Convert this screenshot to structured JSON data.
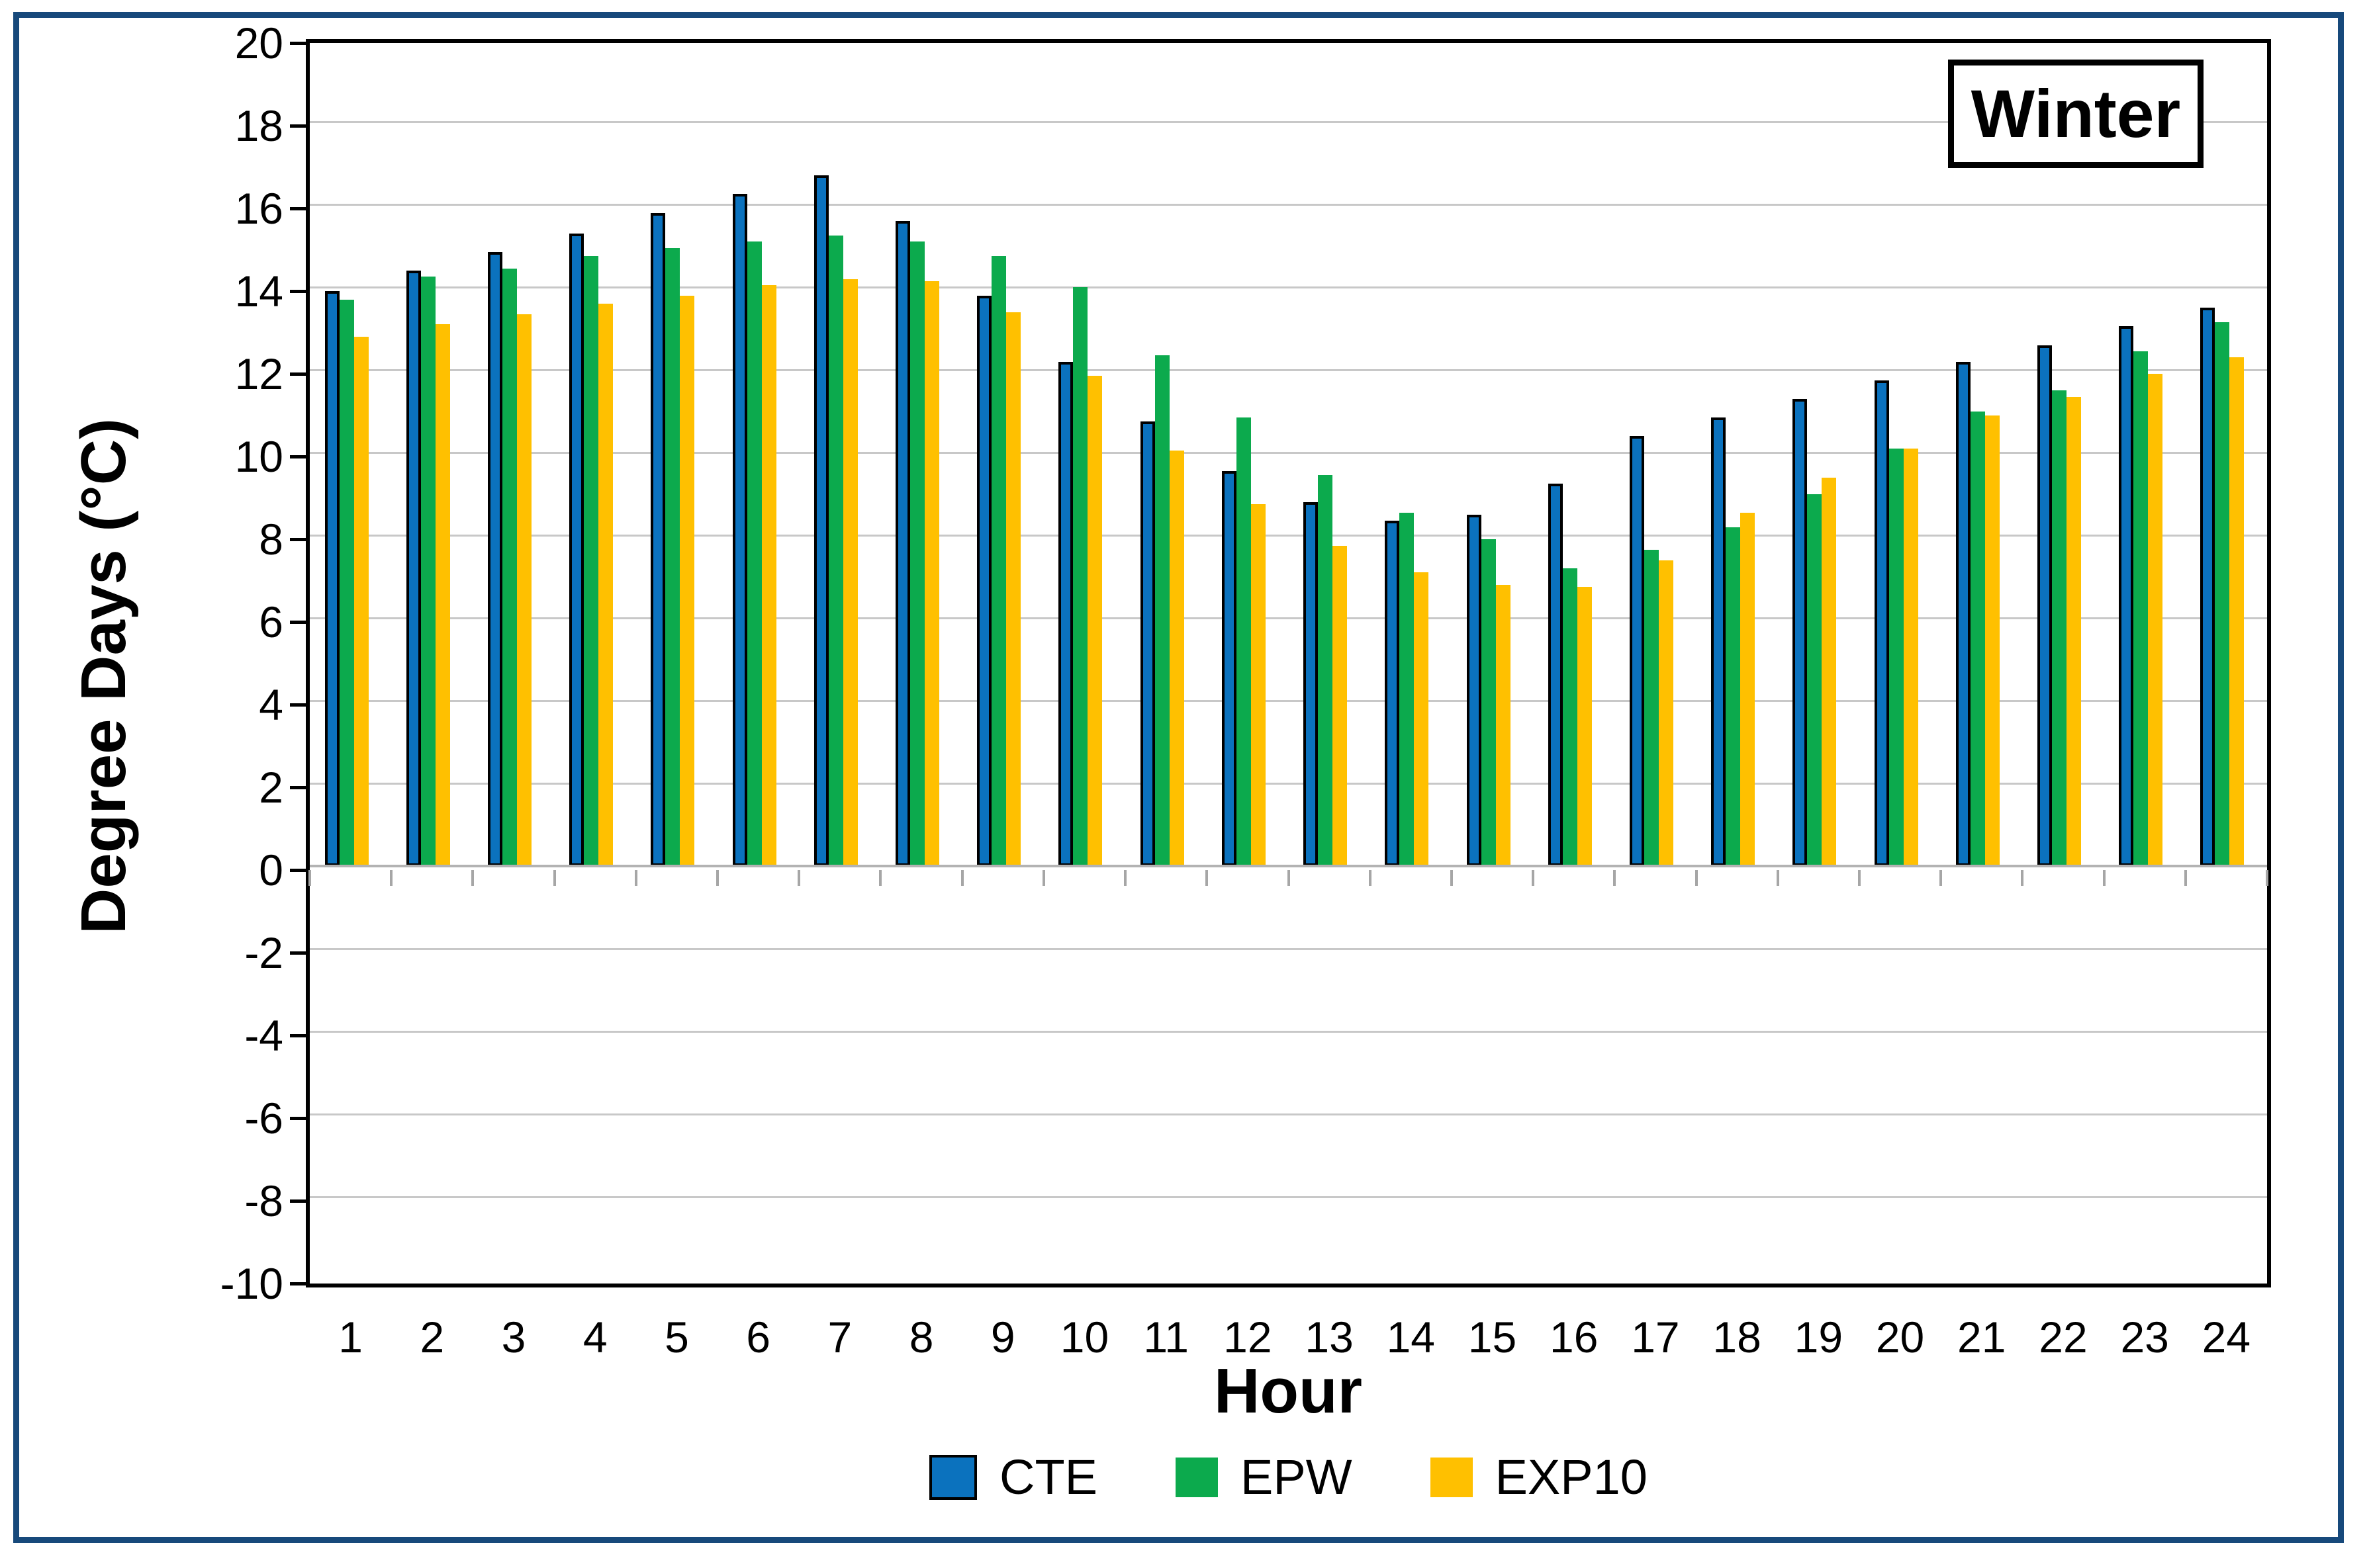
{
  "annotation": {
    "label": "Winter"
  },
  "colors": {
    "cte_blue": "#0b72be",
    "epw_green": "#0caa4d",
    "exp10_yellow": "#ffc000",
    "frame_navy": "#17497b",
    "gridline_gray": "#c8c8c8",
    "axis_black": "#000000"
  },
  "chart_data": {
    "type": "bar",
    "title": "",
    "xlabel": "Hour",
    "ylabel": "Degree Days (°C)",
    "categories": [
      1,
      2,
      3,
      4,
      5,
      6,
      7,
      8,
      9,
      10,
      11,
      12,
      13,
      14,
      15,
      16,
      17,
      18,
      19,
      20,
      21,
      22,
      23,
      24
    ],
    "yticks": [
      20,
      18,
      16,
      14,
      12,
      10,
      8,
      6,
      4,
      2,
      0,
      -2,
      -4,
      -6,
      -8,
      -10
    ],
    "ylim": [
      -10,
      20
    ],
    "grid": true,
    "legend_position": "bottom",
    "series": [
      {
        "name": "CTE",
        "color": "#0b72be",
        "outlined": true,
        "values": [
          13.9,
          14.4,
          14.85,
          15.3,
          15.8,
          16.25,
          16.7,
          15.6,
          13.8,
          12.2,
          10.75,
          9.55,
          8.8,
          8.35,
          8.5,
          9.25,
          10.4,
          10.85,
          11.3,
          11.75,
          12.2,
          12.6,
          13.05,
          13.5
        ]
      },
      {
        "name": "EPW",
        "color": "#0caa4d",
        "outlined": false,
        "values": [
          13.7,
          14.25,
          14.45,
          14.75,
          14.95,
          15.1,
          15.25,
          15.1,
          14.75,
          14.0,
          12.35,
          10.85,
          9.45,
          8.55,
          7.9,
          7.2,
          7.65,
          8.2,
          9.0,
          10.1,
          11.0,
          11.5,
          12.45,
          13.15
        ]
      },
      {
        "name": "EXP10",
        "color": "#ffc000",
        "outlined": false,
        "values": [
          12.8,
          13.1,
          13.35,
          13.6,
          13.8,
          14.05,
          14.2,
          14.15,
          13.4,
          11.85,
          10.05,
          8.75,
          7.75,
          7.1,
          6.8,
          6.75,
          7.4,
          8.55,
          9.4,
          10.1,
          10.9,
          11.35,
          11.9,
          12.3
        ]
      }
    ]
  }
}
